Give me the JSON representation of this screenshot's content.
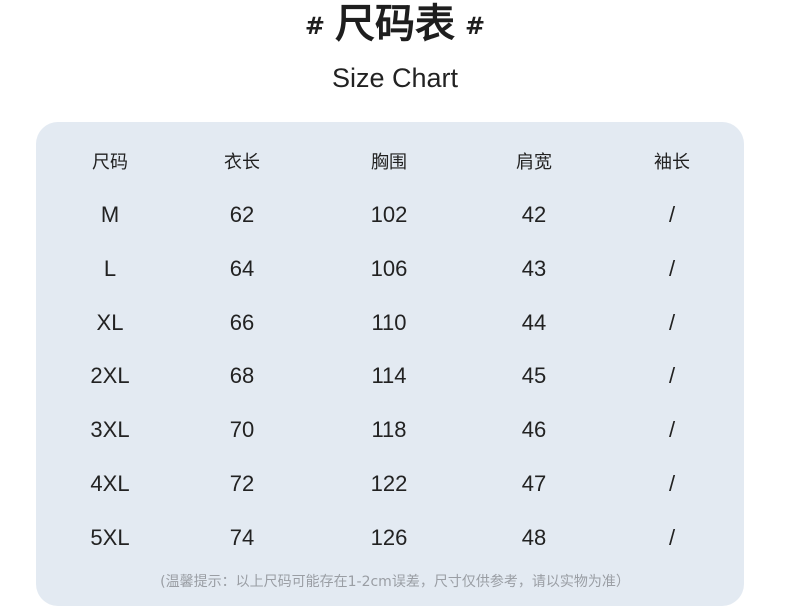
{
  "title": {
    "hash": "#",
    "text": "尺码表"
  },
  "subtitle": "Size Chart",
  "table": {
    "headers": [
      "尺码",
      "衣长",
      "胸围",
      "肩宽",
      "袖长"
    ],
    "rows": [
      [
        "M",
        "62",
        "102",
        "42",
        "/"
      ],
      [
        "L",
        "64",
        "106",
        "43",
        "/"
      ],
      [
        "XL",
        "66",
        "110",
        "44",
        "/"
      ],
      [
        "2XL",
        "68",
        "114",
        "45",
        "/"
      ],
      [
        "3XL",
        "70",
        "118",
        "46",
        "/"
      ],
      [
        "4XL",
        "72",
        "122",
        "47",
        "/"
      ],
      [
        "5XL",
        "74",
        "126",
        "48",
        "/"
      ]
    ]
  },
  "note": "(温馨提示：以上尺码可能存在1-2cm误差，尺寸仅供参考，请以实物为准）",
  "colors": {
    "panel": "#e3eaf2",
    "note": "#9a9ea4"
  }
}
